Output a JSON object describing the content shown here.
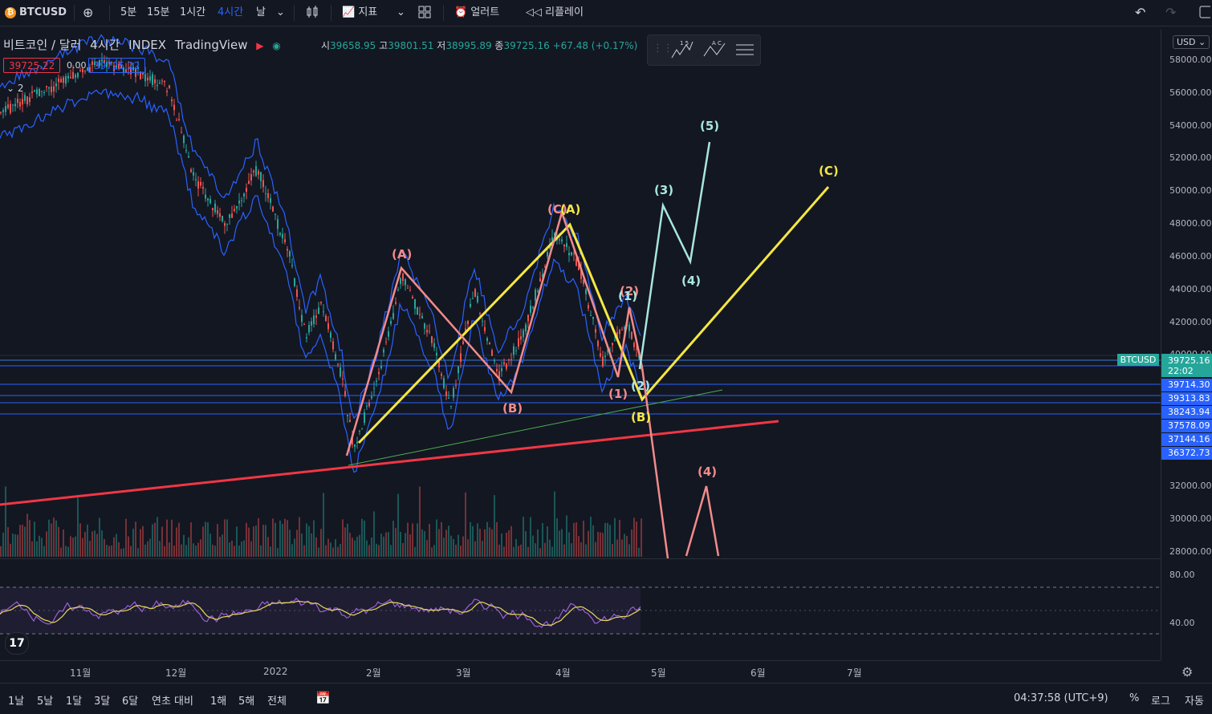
{
  "toolbar": {
    "symbol": "BTCUSD",
    "add_symbol_icon": "plus-circle-icon",
    "intervals": [
      "5분",
      "15분",
      "1시간",
      "4시간",
      "날"
    ],
    "active_interval": "4시간",
    "indicators_label": "지표",
    "alert_label": "얼러트",
    "replay_label": "리플레이"
  },
  "legend": {
    "title": "비트코인 / 달러",
    "interval": "4시간",
    "exchange": "INDEX",
    "source": "TradingView",
    "open_key": "시",
    "open": "39658.95",
    "high_key": "고",
    "high": "39801.51",
    "low_key": "저",
    "low": "38995.89",
    "close_key": "종",
    "close": "39725.16",
    "change": "+67.48 (+0.17%)",
    "sell_price": "39725.22",
    "spread": "0.00",
    "buy_price": "39725.22",
    "indicator_count": "2"
  },
  "price_axis": {
    "currency": "USD",
    "labels": [
      "58000.00",
      "56000.00",
      "54000.00",
      "52000.00",
      "50000.00",
      "48000.00",
      "46000.00",
      "44000.00",
      "42000.00",
      "40000.00",
      "32000.00",
      "30000.00",
      "28000.00"
    ],
    "current_tag": "BTCUSD",
    "current_price": "39725.16",
    "countdown": "22:02",
    "levels": [
      "39714.30",
      "39313.83",
      "38243.94",
      "37578.09",
      "37144.16",
      "36372.73"
    ]
  },
  "rsi_axis": {
    "labels": [
      "80.00",
      "40.00"
    ]
  },
  "time_axis": {
    "labels": [
      "11월",
      "12월",
      "2022",
      "2월",
      "3월",
      "4월",
      "5월",
      "6월",
      "7월"
    ]
  },
  "waves": {
    "pink_A": "(A)",
    "pink_B": "(B)",
    "pink_C": "(C)",
    "yellow_A": "(A)",
    "yellow_B": "(B)",
    "yellow_C": "(C)",
    "pink_1": "(1)",
    "pink_2": "(2)",
    "pink_4": "(4)",
    "cyan_1": "(1)",
    "cyan_2": "(2)",
    "cyan_3": "(3)",
    "cyan_4": "(4)",
    "cyan_5": "(5)"
  },
  "bottom_bar": {
    "ranges": [
      "1날",
      "5날",
      "1달",
      "3달",
      "6달",
      "연초 대비",
      "1해",
      "5해",
      "전체"
    ],
    "clock": "04:37:58 (UTC+9)",
    "percent": "%",
    "log": "로그",
    "auto": "자동"
  },
  "colors": {
    "background": "#131722",
    "accent": "#2962ff",
    "yellow_wave": "#f5e642",
    "pink_wave": "#f28b8b",
    "cyan_wave": "#a8e6e0",
    "trend_red": "#f23645",
    "band_blue": "#2962ff",
    "rsi_purple": "#9c5fd6"
  }
}
